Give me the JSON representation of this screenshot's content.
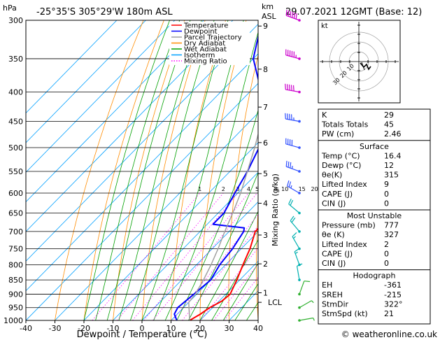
{
  "header": {
    "location": "-25°35'S  305°29'W  180m  ASL",
    "datetime": "29.07.2021  12GMT  (Base: 12)",
    "pressure_unit": "hPa",
    "height_unit_top": "km",
    "height_unit_bottom": "ASL"
  },
  "chart_data": {
    "type": "skew-t",
    "title": "-25°35'S  305°29'W  180m  ASL",
    "xlabel": "Dewpoint / Temperature (°C)",
    "ylabel": "hPa",
    "xlim": [
      -40,
      40
    ],
    "ylim": [
      1000,
      300
    ],
    "x_ticks": [
      "-40",
      "-30",
      "-20",
      "-10",
      "0",
      "10",
      "20",
      "30",
      "40"
    ],
    "pressure_levels": [
      300,
      350,
      400,
      450,
      500,
      550,
      600,
      650,
      700,
      750,
      800,
      850,
      900,
      950,
      1000
    ],
    "height_km_ticks": [
      {
        "label": "9",
        "p": 307
      },
      {
        "label": "8",
        "p": 365
      },
      {
        "label": "7",
        "p": 425
      },
      {
        "label": "6",
        "p": 490
      },
      {
        "label": "5",
        "p": 555
      },
      {
        "label": "4",
        "p": 625
      },
      {
        "label": "3",
        "p": 710
      },
      {
        "label": "2",
        "p": 797
      },
      {
        "label": "1",
        "p": 895
      }
    ],
    "lcl": {
      "label": "LCL",
      "p": 930
    },
    "mixing_ratio_label": "Mixing Ratio (g/kg)",
    "mixing_ratio_values": [
      "1",
      "2",
      "3",
      "4",
      "5",
      "8",
      "10",
      "15",
      "20",
      "25"
    ],
    "legend": [
      {
        "name": "Temperature",
        "color": "#ff0000"
      },
      {
        "name": "Dewpoint",
        "color": "#0000ff"
      },
      {
        "name": "Parcel Trajectory",
        "color": "#a0a0a0"
      },
      {
        "name": "Dry Adiabat",
        "color": "#ff8c00"
      },
      {
        "name": "Wet Adiabat",
        "color": "#00a000"
      },
      {
        "name": "Isotherm",
        "color": "#00a0ff"
      },
      {
        "name": "Mixing Ratio",
        "color": "#ff00ff"
      }
    ],
    "series": [
      {
        "name": "Temperature",
        "points": [
          [
            1000,
            16.4
          ],
          [
            975,
            18
          ],
          [
            950,
            19
          ],
          [
            925,
            21
          ],
          [
            900,
            21.5
          ],
          [
            850,
            19
          ],
          [
            800,
            16
          ],
          [
            750,
            13
          ],
          [
            700,
            9
          ],
          [
            680,
            9
          ],
          [
            650,
            7
          ],
          [
            600,
            2.5
          ],
          [
            550,
            -2
          ],
          [
            500,
            -8
          ],
          [
            450,
            -14.5
          ],
          [
            420,
            -18
          ],
          [
            400,
            -19
          ],
          [
            380,
            -22
          ],
          [
            350,
            -28
          ],
          [
            300,
            -38
          ]
        ]
      },
      {
        "name": "Dewpoint",
        "points": [
          [
            1000,
            12
          ],
          [
            975,
            9
          ],
          [
            950,
            8
          ],
          [
            925,
            8.5
          ],
          [
            900,
            9
          ],
          [
            850,
            10
          ],
          [
            800,
            8
          ],
          [
            750,
            7
          ],
          [
            700,
            5
          ],
          [
            690,
            4
          ],
          [
            680,
            -8
          ],
          [
            650,
            -8
          ],
          [
            600,
            -11
          ],
          [
            550,
            -14
          ],
          [
            500,
            -18
          ],
          [
            480,
            -20
          ],
          [
            450,
            -22
          ],
          [
            430,
            -26
          ],
          [
            400,
            -36
          ],
          [
            392,
            -32
          ],
          [
            385,
            -40
          ],
          [
            350,
            -50
          ],
          [
            300,
            -60
          ]
        ]
      },
      {
        "name": "Parcel Trajectory",
        "points": [
          [
            1000,
            16.4
          ],
          [
            930,
            10
          ],
          [
            900,
            9.5
          ],
          [
            850,
            7.5
          ],
          [
            800,
            5
          ],
          [
            750,
            2
          ],
          [
            700,
            -1.5
          ],
          [
            650,
            -5
          ],
          [
            600,
            -9
          ],
          [
            550,
            -14
          ],
          [
            500,
            -19.5
          ],
          [
            450,
            -26
          ],
          [
            400,
            -33
          ],
          [
            350,
            -41
          ],
          [
            300,
            -50
          ]
        ]
      }
    ],
    "wind_barbs": [
      {
        "p": 300,
        "dir": 290,
        "spd": 60
      },
      {
        "p": 350,
        "dir": 285,
        "spd": 55
      },
      {
        "p": 400,
        "dir": 280,
        "spd": 50
      },
      {
        "p": 450,
        "dir": 280,
        "spd": 45
      },
      {
        "p": 500,
        "dir": 285,
        "spd": 40
      },
      {
        "p": 550,
        "dir": 290,
        "spd": 35
      },
      {
        "p": 600,
        "dir": 300,
        "spd": 25
      },
      {
        "p": 650,
        "dir": 310,
        "spd": 20
      },
      {
        "p": 700,
        "dir": 320,
        "spd": 20
      },
      {
        "p": 750,
        "dir": 330,
        "spd": 15
      },
      {
        "p": 800,
        "dir": 340,
        "spd": 15
      },
      {
        "p": 850,
        "dir": 350,
        "spd": 10
      },
      {
        "p": 900,
        "dir": 20,
        "spd": 10
      },
      {
        "p": 950,
        "dir": 60,
        "spd": 5
      },
      {
        "p": 1000,
        "dir": 80,
        "spd": 5
      }
    ]
  },
  "hodograph": {
    "unit_label": "kt",
    "ring_labels": [
      "10",
      "20",
      "30"
    ]
  },
  "indices": [
    {
      "label": "K",
      "value": "29"
    },
    {
      "label": "Totals Totals",
      "value": "45"
    },
    {
      "label": "PW (cm)",
      "value": "2.46"
    }
  ],
  "surface": {
    "title": "Surface",
    "rows": [
      {
        "label": "Temp (°C)",
        "value": "16.4"
      },
      {
        "label": "Dewp (°C)",
        "value": "12"
      },
      {
        "label": "θe(K)",
        "value": "315"
      },
      {
        "label": "Lifted Index",
        "value": "9"
      },
      {
        "label": "CAPE (J)",
        "value": "0"
      },
      {
        "label": "CIN (J)",
        "value": "0"
      }
    ]
  },
  "most_unstable": {
    "title": "Most Unstable",
    "rows": [
      {
        "label": "Pressure (mb)",
        "value": "777"
      },
      {
        "label": "θe (K)",
        "value": "327"
      },
      {
        "label": "Lifted Index",
        "value": "2"
      },
      {
        "label": "CAPE (J)",
        "value": "0"
      },
      {
        "label": "CIN (J)",
        "value": "0"
      }
    ]
  },
  "hodograph_table": {
    "title": "Hodograph",
    "rows": [
      {
        "label": "EH",
        "value": "-361"
      },
      {
        "label": "SREH",
        "value": "-215"
      },
      {
        "label": "StmDir",
        "value": "322°"
      },
      {
        "label": "StmSpd (kt)",
        "value": "21"
      }
    ]
  },
  "footer": {
    "copyright": "© weatheronline.co.uk"
  }
}
